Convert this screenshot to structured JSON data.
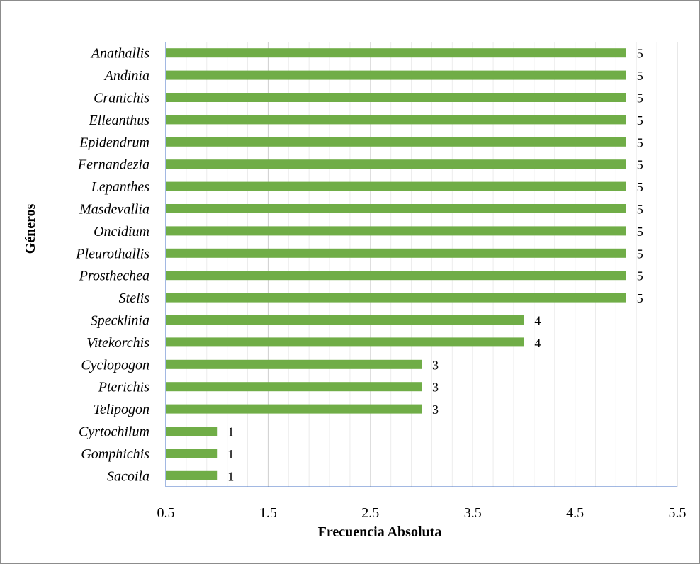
{
  "chart_data": {
    "type": "bar",
    "orientation": "horizontal",
    "categories": [
      "Anathallis",
      "Andinia",
      "Cranichis",
      "Elleanthus",
      "Epidendrum",
      "Fernandezia",
      "Lepanthes",
      "Masdevallia",
      "Oncidium",
      "Pleurothallis",
      "Prosthechea",
      "Stelis",
      "Specklinia",
      "Vitekorchis",
      "Cyclopogon",
      "Pterichis",
      "Telipogon",
      "Cyrtochilum",
      "Gomphichis",
      "Sacoila"
    ],
    "values": [
      5,
      5,
      5,
      5,
      5,
      5,
      5,
      5,
      5,
      5,
      5,
      5,
      4,
      4,
      3,
      3,
      3,
      1,
      1,
      1
    ],
    "xlabel": "Frecuencia Absoluta",
    "ylabel": "Géneros",
    "xlim": [
      0.5,
      5.5
    ],
    "x_ticks": [
      "0.5",
      "1.5",
      "2.5",
      "3.5",
      "4.5",
      "5.5"
    ],
    "bar_color": "#70AD47",
    "grid": "vertical",
    "data_labels": true
  }
}
